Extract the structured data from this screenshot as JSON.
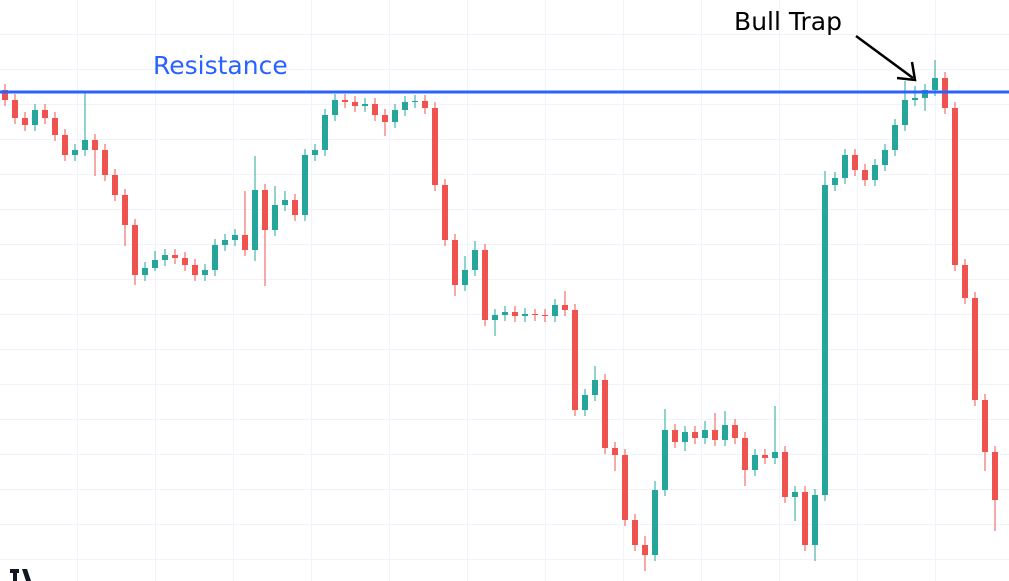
{
  "chart_data": {
    "type": "candlestick",
    "ylim": [
      0,
      581
    ],
    "up_color": "#26a69a",
    "down_color": "#ef5350",
    "open": [
      491,
      481,
      463,
      456,
      471,
      463,
      446,
      426,
      431,
      441,
      431,
      406,
      386,
      356,
      306,
      313,
      321,
      326,
      323,
      316,
      306,
      311,
      336,
      341,
      346,
      331,
      391,
      351,
      376,
      381,
      366,
      426,
      431,
      466,
      481,
      479,
      475,
      477,
      466,
      459,
      471,
      479,
      480,
      473,
      396,
      341,
      296,
      311,
      331,
      261,
      266,
      269,
      265,
      267,
      266,
      265,
      276,
      271,
      171,
      186,
      201,
      133,
      126,
      61,
      36,
      26,
      91,
      151,
      139,
      149,
      143,
      151,
      141,
      156,
      143,
      111,
      126,
      123,
      129,
      84,
      89,
      36,
      86,
      396,
      403,
      426,
      411,
      401,
      416,
      431,
      456,
      481,
      483,
      491,
      503,
      473,
      316,
      283,
      181,
      129
    ],
    "high": [
      497,
      487,
      469,
      477,
      477,
      469,
      452,
      437,
      490,
      447,
      437,
      412,
      392,
      362,
      319,
      330,
      332,
      332,
      329,
      322,
      317,
      342,
      347,
      352,
      390,
      425,
      397,
      395,
      390,
      387,
      432,
      437,
      472,
      487,
      487,
      485,
      483,
      483,
      472,
      477,
      485,
      486,
      486,
      479,
      402,
      347,
      325,
      340,
      337,
      272,
      275,
      275,
      273,
      272,
      272,
      282,
      290,
      277,
      192,
      215,
      207,
      139,
      132,
      67,
      45,
      100,
      172,
      157,
      155,
      155,
      160,
      168,
      170,
      162,
      149,
      132,
      132,
      175,
      135,
      95,
      95,
      92,
      410,
      409,
      432,
      432,
      417,
      422,
      437,
      462,
      500,
      495,
      497,
      521,
      509,
      479,
      322,
      289,
      187,
      135
    ],
    "low": [
      475,
      457,
      450,
      450,
      457,
      440,
      420,
      420,
      425,
      405,
      400,
      380,
      335,
      296,
      300,
      310,
      315,
      317,
      310,
      300,
      300,
      305,
      330,
      335,
      325,
      320,
      295,
      345,
      370,
      360,
      360,
      420,
      425,
      460,
      473,
      469,
      469,
      460,
      445,
      453,
      465,
      473,
      467,
      390,
      335,
      285,
      290,
      305,
      255,
      245,
      260,
      259,
      259,
      260,
      259,
      259,
      265,
      165,
      165,
      180,
      127,
      110,
      55,
      30,
      10,
      20,
      85,
      133,
      130,
      137,
      137,
      135,
      135,
      137,
      95,
      105,
      117,
      117,
      78,
      60,
      30,
      20,
      80,
      390,
      397,
      405,
      395,
      395,
      410,
      425,
      450,
      475,
      470,
      485,
      467,
      310,
      277,
      175,
      110,
      50
    ],
    "close": [
      481,
      463,
      456,
      471,
      463,
      446,
      426,
      431,
      441,
      431,
      406,
      386,
      356,
      306,
      313,
      321,
      326,
      323,
      316,
      306,
      311,
      336,
      341,
      346,
      331,
      391,
      351,
      376,
      381,
      366,
      426,
      431,
      466,
      481,
      479,
      475,
      477,
      466,
      459,
      471,
      479,
      480,
      473,
      396,
      341,
      296,
      311,
      331,
      261,
      266,
      269,
      265,
      267,
      266,
      265,
      276,
      271,
      171,
      186,
      201,
      133,
      126,
      61,
      36,
      26,
      91,
      151,
      139,
      149,
      143,
      151,
      141,
      156,
      143,
      111,
      126,
      123,
      129,
      84,
      89,
      36,
      86,
      396,
      403,
      426,
      411,
      401,
      416,
      431,
      456,
      481,
      483,
      491,
      503,
      473,
      316,
      283,
      181,
      129,
      81
    ],
    "resistance": {
      "label": "Resistance",
      "value": 489,
      "color": "#2962ff"
    },
    "annotation": {
      "text": "Bull Trap"
    }
  }
}
